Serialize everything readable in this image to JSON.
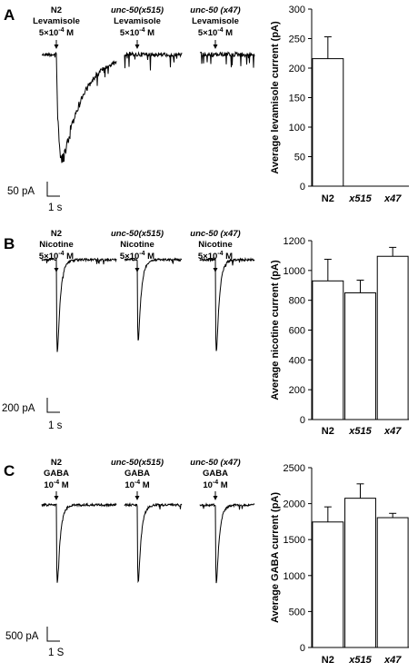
{
  "panels": [
    {
      "label": "A",
      "traces": [
        {
          "lines": [
            "N2",
            "Levamisole",
            "5×10^-4 M"
          ],
          "strain_italic": false,
          "kind": "levamisole",
          "peak": 1.0
        },
        {
          "lines": [
            "unc-50(x515)",
            "Levamisole",
            "5×10^-4 M"
          ],
          "strain_italic": true,
          "kind": "flat",
          "peak": 0
        },
        {
          "lines": [
            "unc-50 (x47)",
            "Levamisole",
            "5×10^-4 M"
          ],
          "strain_italic": true,
          "kind": "flat",
          "peak": 0
        }
      ],
      "scalebar": {
        "amplitude": "50 pA",
        "time": "1 s"
      }
    },
    {
      "label": "B",
      "traces": [
        {
          "lines": [
            "N2",
            "Nicotine",
            "5×10^-4 M"
          ],
          "strain_italic": false,
          "kind": "spike",
          "peak": 1.0
        },
        {
          "lines": [
            "unc-50(x515)",
            "Nicotine",
            "5×10^-4 M"
          ],
          "strain_italic": true,
          "kind": "spike",
          "peak": 0.88
        },
        {
          "lines": [
            "unc-50 (x47)",
            "Nicotine",
            "5×10^-4 M"
          ],
          "strain_italic": true,
          "kind": "spike",
          "peak": 1.0
        }
      ],
      "scalebar": {
        "amplitude": "200 pA",
        "time": "1 s"
      }
    },
    {
      "label": "C",
      "traces": [
        {
          "lines": [
            "N2",
            "GABA",
            "10^-4 M"
          ],
          "strain_italic": false,
          "kind": "spike",
          "peak": 1.0
        },
        {
          "lines": [
            "unc-50(x515)",
            "GABA",
            "10^-4 M"
          ],
          "strain_italic": true,
          "kind": "spike",
          "peak": 1.0
        },
        {
          "lines": [
            "unc-50 (x47)",
            "GABA",
            "10^-4 M"
          ],
          "strain_italic": true,
          "kind": "spike",
          "peak": 1.0
        }
      ],
      "scalebar": {
        "amplitude": "500 pA",
        "time": "1 S"
      }
    }
  ],
  "chart_data": [
    {
      "type": "bar",
      "categories": [
        "N2",
        "x515",
        "x47"
      ],
      "values": [
        216,
        0,
        0
      ],
      "errors": [
        37,
        0,
        0
      ],
      "ylabel": "Average levamisole current (pA)",
      "ylim": [
        0,
        300
      ],
      "yticks": [
        0,
        50,
        100,
        150,
        200,
        250,
        300
      ]
    },
    {
      "type": "bar",
      "categories": [
        "N2",
        "x515",
        "x47"
      ],
      "values": [
        930,
        850,
        1095
      ],
      "errors": [
        145,
        85,
        60
      ],
      "ylabel": "Average nicotine current (pA)",
      "ylim": [
        0,
        1200
      ],
      "yticks": [
        0,
        200,
        400,
        600,
        800,
        1000,
        1200
      ]
    },
    {
      "type": "bar",
      "categories": [
        "N2",
        "x515",
        "x47"
      ],
      "values": [
        1745,
        2075,
        1805
      ],
      "errors": [
        210,
        200,
        60
      ],
      "ylabel": "Average GABA current (pA)",
      "ylim": [
        0,
        2500
      ],
      "yticks": [
        0,
        500,
        1000,
        1500,
        2000,
        2500
      ]
    }
  ]
}
